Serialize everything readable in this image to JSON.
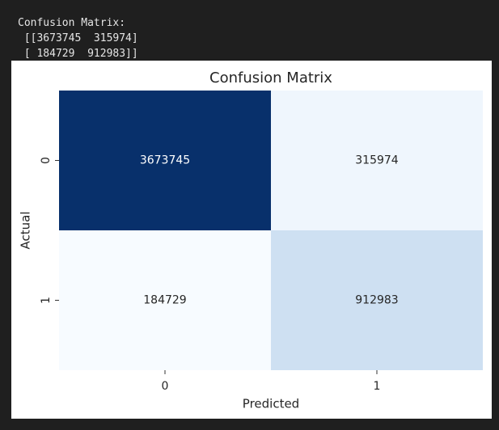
{
  "console_output": [
    "Confusion Matrix:",
    " [[3673745  315974]",
    " [ 184729  912983]]"
  ],
  "chart_data": {
    "type": "heatmap",
    "title": "Confusion Matrix",
    "x_label": "Predicted",
    "y_label": "Actual",
    "x_categories": [
      "0",
      "1"
    ],
    "y_categories": [
      "0",
      "1"
    ],
    "values": [
      [
        3673745,
        315974
      ],
      [
        184729,
        912983
      ]
    ],
    "colormap": "Blues",
    "annotate": true
  }
}
